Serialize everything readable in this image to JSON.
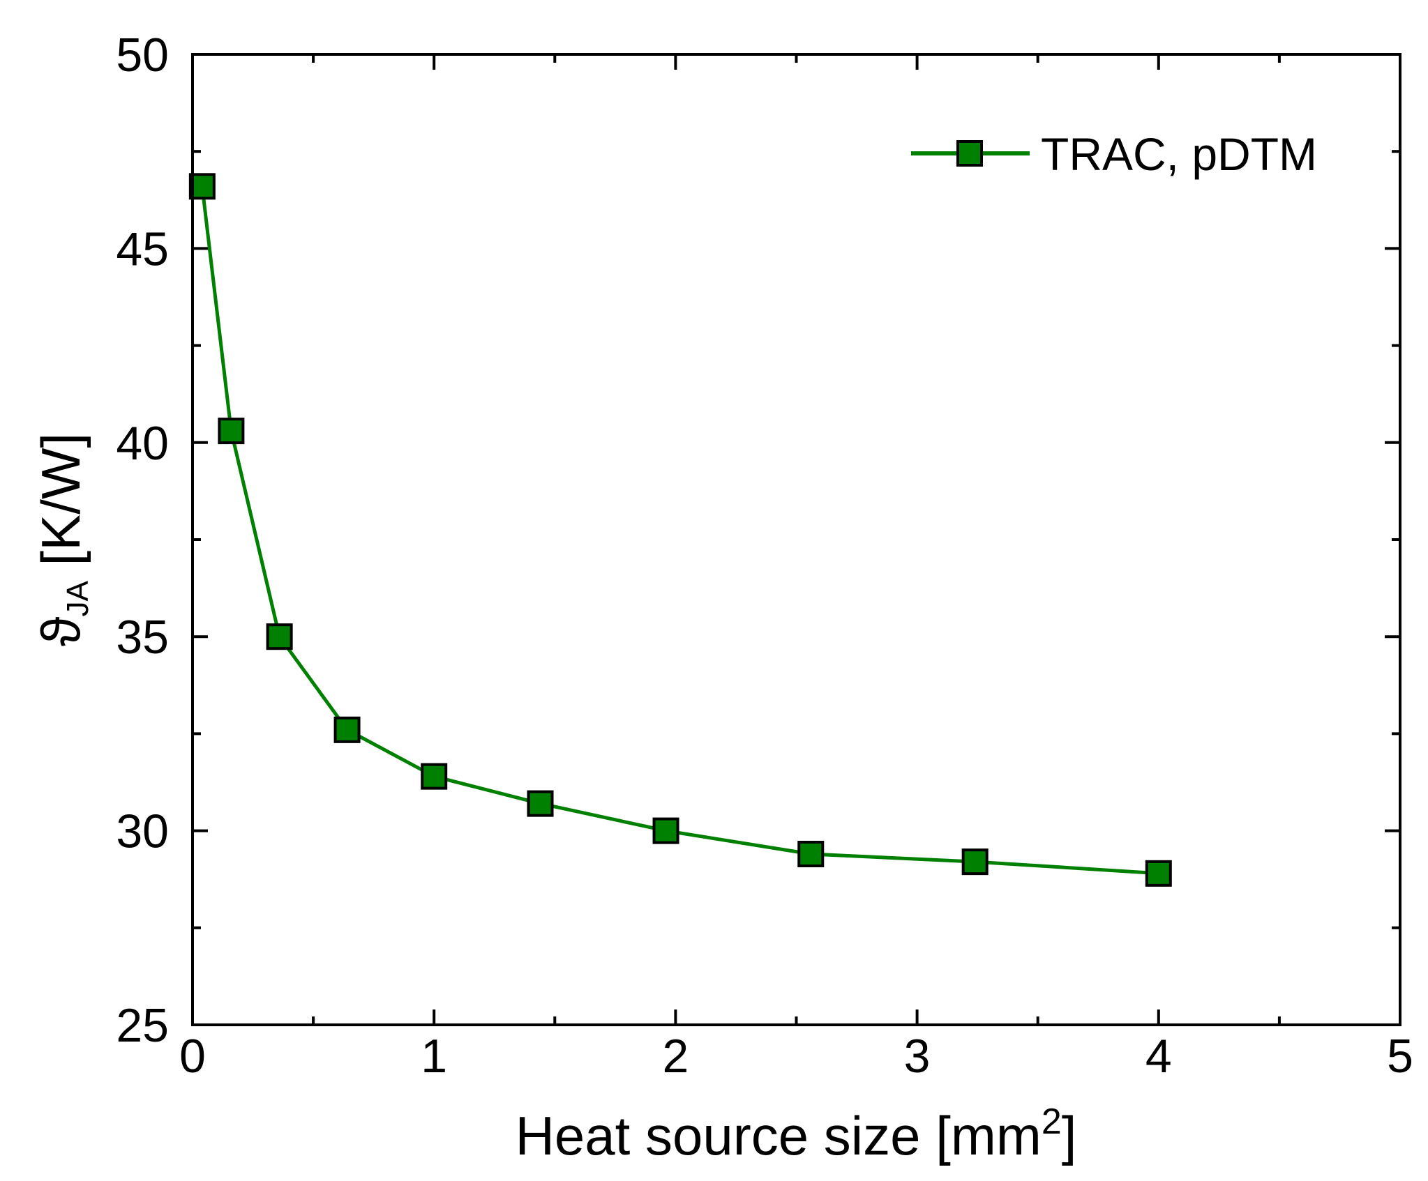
{
  "chart_data": {
    "type": "line",
    "title": "",
    "xlabel": "Heat source size [mm",
    "xlabel_superscript": "2",
    "xlabel_suffix": "]",
    "ylabel_symbol": "ϑ",
    "ylabel_subscript": "JA",
    "ylabel_unit": "[K/W]",
    "xlim": [
      0,
      5
    ],
    "ylim": [
      25,
      50
    ],
    "xticks": [
      0,
      1,
      2,
      3,
      4,
      5
    ],
    "yticks": [
      25,
      30,
      35,
      40,
      45,
      50
    ],
    "x_minor_step": 0.5,
    "y_minor_step": 2.5,
    "grid": false,
    "legend_position": "top-right",
    "series": [
      {
        "name": "TRAC, pDTM",
        "color": "#008000",
        "marker": "square",
        "x": [
          0.04,
          0.16,
          0.36,
          0.64,
          1.0,
          1.44,
          1.96,
          2.56,
          3.24,
          4.0
        ],
        "y": [
          46.6,
          40.3,
          35.0,
          32.6,
          31.4,
          30.7,
          30.0,
          29.4,
          29.2,
          28.9
        ]
      }
    ]
  }
}
